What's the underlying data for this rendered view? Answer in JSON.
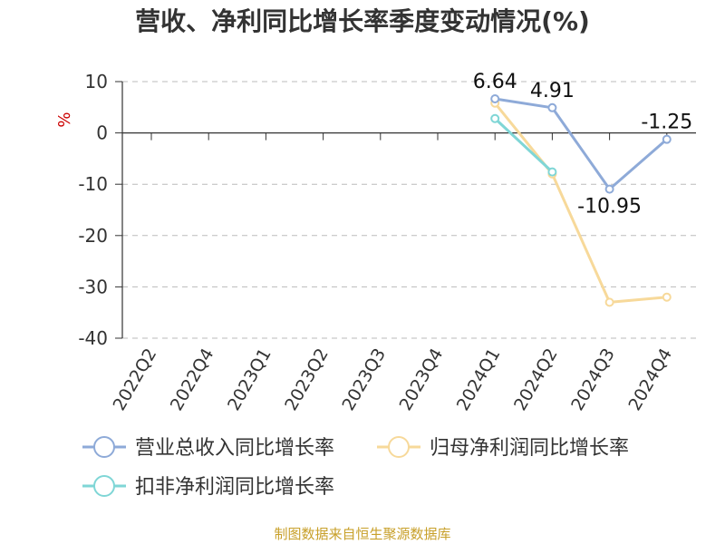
{
  "title": "营收、净利同比增长率季度变动情况(%)",
  "source": "制图数据来自恒生聚源数据库",
  "chart_data": {
    "type": "line",
    "ylabel": "%",
    "ylim": [
      -40,
      10
    ],
    "yticks": [
      10,
      0,
      -10,
      -20,
      -30,
      -40
    ],
    "grid": true,
    "legend_position": "bottom",
    "categories": [
      "2022Q2",
      "2022Q4",
      "2023Q1",
      "2023Q2",
      "2023Q3",
      "2023Q4",
      "2024Q1",
      "2024Q2",
      "2024Q3",
      "2024Q4"
    ],
    "series": [
      {
        "name": "营业总收入同比增长率",
        "color": "#8eaad8",
        "values": [
          null,
          null,
          null,
          null,
          null,
          null,
          6.64,
          4.91,
          -10.95,
          -1.25
        ],
        "labels": [
          null,
          null,
          null,
          null,
          null,
          null,
          "6.64",
          "4.91",
          "-10.95",
          "-1.25"
        ]
      },
      {
        "name": "归母净利润同比增长率",
        "color": "#f7d99a",
        "values": [
          null,
          null,
          null,
          null,
          null,
          null,
          5.8,
          -8.0,
          -33.0,
          -32.0
        ],
        "labels": [
          null,
          null,
          null,
          null,
          null,
          null,
          null,
          null,
          null,
          null
        ]
      },
      {
        "name": "扣非净利润同比增长率",
        "color": "#7fd6d6",
        "values": [
          null,
          null,
          null,
          null,
          null,
          null,
          2.8,
          -7.6,
          null,
          null
        ],
        "labels": [
          null,
          null,
          null,
          null,
          null,
          null,
          null,
          null,
          null,
          null
        ]
      }
    ]
  }
}
